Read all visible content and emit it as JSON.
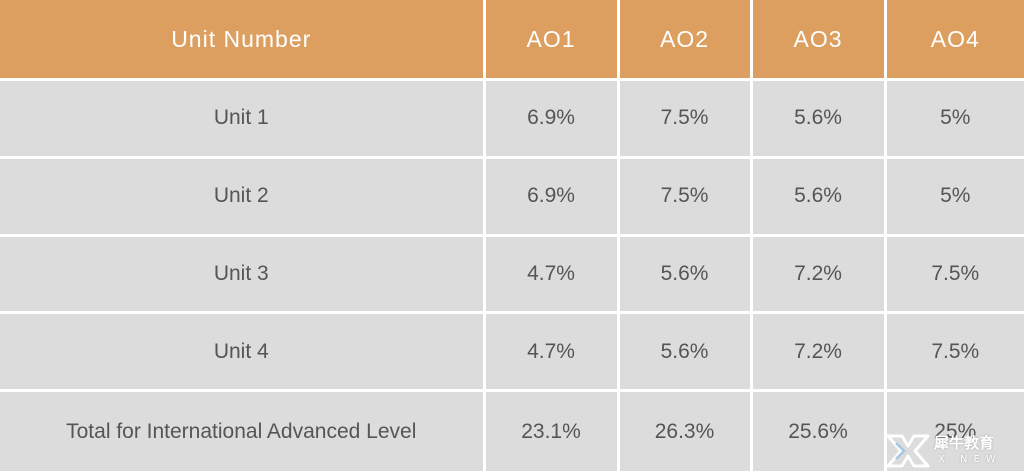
{
  "table": {
    "headers": [
      "Unit Number",
      "AO1",
      "AO2",
      "AO3",
      "AO4"
    ],
    "rows": [
      [
        "Unit 1",
        "6.9%",
        "7.5%",
        "5.6%",
        "5%"
      ],
      [
        "Unit 2",
        "6.9%",
        "7.5%",
        "5.6%",
        "5%"
      ],
      [
        "Unit 3",
        "4.7%",
        "5.6%",
        "7.2%",
        "7.5%"
      ],
      [
        "Unit 4",
        "4.7%",
        "5.6%",
        "7.2%",
        "7.5%"
      ],
      [
        "Total for International Advanced Level",
        "23.1%",
        "26.3%",
        "25.6%",
        "25%"
      ]
    ]
  },
  "colors": {
    "header_bg": "#dc9f60",
    "cell_bg": "#dcdcdc",
    "header_text": "#ffffff",
    "cell_text": "#555555"
  },
  "watermark": {
    "icon": "x-new-logo-icon",
    "cn_text": "犀牛教育",
    "en_text": "X-NEW"
  }
}
